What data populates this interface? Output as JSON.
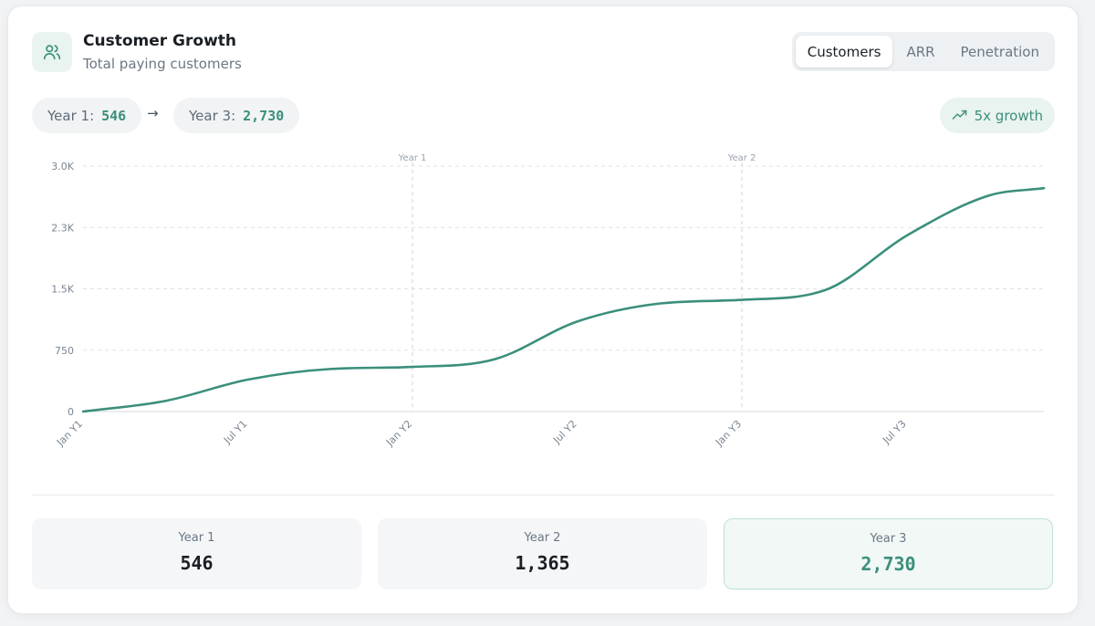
{
  "header": {
    "title": "Customer Growth",
    "subtitle": "Total paying customers",
    "icon": "users-icon"
  },
  "tabs": [
    {
      "label": "Customers",
      "active": true
    },
    {
      "label": "ARR",
      "active": false
    },
    {
      "label": "Penetration",
      "active": false
    }
  ],
  "summary": {
    "year1_label": "Year 1:",
    "year1_value": "546",
    "arrow": "→",
    "year3_label": "Year 3:",
    "year3_value": "2,730",
    "growth_label": "5x growth",
    "growth_icon": "trending-up-icon"
  },
  "colors": {
    "accent": "#3b8f7c",
    "line": "#3b8f7c",
    "grid": "#dfe3e7"
  },
  "chart_data": {
    "type": "line",
    "x": [
      0,
      3,
      6,
      9,
      12,
      15,
      18,
      21,
      24,
      27,
      30,
      33,
      35
    ],
    "series": [
      {
        "values": [
          0,
          130,
          390,
          520,
          546,
          640,
          1100,
          1320,
          1365,
          1480,
          2150,
          2640,
          2730
        ]
      }
    ],
    "x_ticks": [
      {
        "at": 0,
        "label": "Jan Y1"
      },
      {
        "at": 6,
        "label": "Jul Y1"
      },
      {
        "at": 12,
        "label": "Jan Y2"
      },
      {
        "at": 18,
        "label": "Jul Y2"
      },
      {
        "at": 24,
        "label": "Jan Y3"
      },
      {
        "at": 30,
        "label": "Jul Y3"
      }
    ],
    "xlim": [
      0,
      35
    ],
    "y_ticks": [
      {
        "at": 0,
        "label": "0"
      },
      {
        "at": 750,
        "label": "750"
      },
      {
        "at": 1500,
        "label": "1.5K"
      },
      {
        "at": 2250,
        "label": "2.3K"
      },
      {
        "at": 3000,
        "label": "3.0K"
      }
    ],
    "ylim": [
      0,
      3000
    ],
    "reference_lines": [
      {
        "at": 12,
        "label": "Year 1"
      },
      {
        "at": 24,
        "label": "Year 2"
      }
    ],
    "grid": true
  },
  "stats": [
    {
      "label": "Year 1",
      "value": "546",
      "highlight": false
    },
    {
      "label": "Year 2",
      "value": "1,365",
      "highlight": false
    },
    {
      "label": "Year 3",
      "value": "2,730",
      "highlight": true
    }
  ]
}
